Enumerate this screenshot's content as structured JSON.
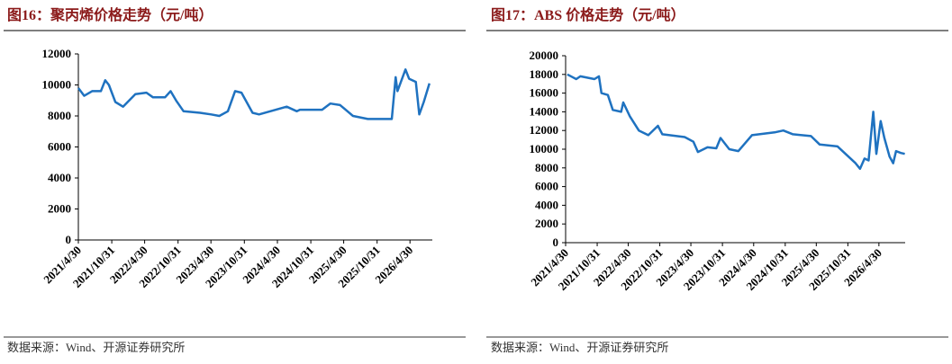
{
  "chart_data": [
    {
      "type": "line",
      "title": "图16：聚丙烯价格走势（元/吨）",
      "color": "#1f72c0",
      "x": [
        "2021/4/30",
        "2021/6/1",
        "2021/7/15",
        "2021/9/1",
        "2021/9/25",
        "2021/10/15",
        "2021/11/20",
        "2022/1/1",
        "2022/3/10",
        "2022/5/10",
        "2022/6/15",
        "2022/8/20",
        "2022/9/20",
        "2022/10/20",
        "2022/11/30",
        "2023/3/1",
        "2023/5/1",
        "2023/6/15",
        "2023/8/1",
        "2023/9/10",
        "2023/10/15",
        "2023/12/15",
        "2024/1/20",
        "2024/6/20",
        "2024/8/15",
        "2024/9/1",
        "2025/1/1",
        "2025/2/15",
        "2025/4/10",
        "2025/6/20",
        "2025/9/10",
        "2025/11/20",
        "2026/1/20",
        "2026/2/10",
        "2026/2/20",
        "2026/4/5",
        "2026/4/25",
        "2026/6/1",
        "2026/6/20",
        "2026/7/15",
        "2026/8/15"
      ],
      "values": [
        9800,
        9300,
        9600,
        9600,
        10300,
        10000,
        8900,
        8600,
        9400,
        9500,
        9200,
        9200,
        9600,
        9000,
        8300,
        8200,
        8100,
        8000,
        8300,
        9600,
        9500,
        8200,
        8100,
        8600,
        8300,
        8400,
        8400,
        8800,
        8700,
        8000,
        7800,
        7800,
        7800,
        10500,
        9600,
        11000,
        10400,
        10200,
        8100,
        8900,
        10100
      ],
      "xlim": [
        "2021/4/30",
        "2026/8/31"
      ],
      "xticks": [
        "2021/4/30",
        "2021/10/31",
        "2022/4/30",
        "2022/10/31",
        "2023/4/30",
        "2023/10/31",
        "2024/4/30",
        "2024/10/31",
        "2025/4/30",
        "2025/10/31",
        "2026/4/30"
      ],
      "ylim": [
        0,
        12000
      ],
      "yticks": [
        0,
        2000,
        4000,
        6000,
        8000,
        10000,
        12000
      ],
      "source": "数据来源：Wind、开源证券研究所"
    },
    {
      "type": "line",
      "title": "图17：ABS 价格走势（元/吨）",
      "color": "#1f72c0",
      "x": [
        "2021/5/10",
        "2021/7/1",
        "2021/7/25",
        "2021/10/15",
        "2021/11/10",
        "2021/11/25",
        "2022/1/1",
        "2022/1/30",
        "2022/3/20",
        "2022/4/1",
        "2022/5/10",
        "2022/7/1",
        "2022/8/25",
        "2022/10/20",
        "2022/11/15",
        "2023/3/25",
        "2023/5/15",
        "2023/6/10",
        "2023/8/5",
        "2023/9/25",
        "2023/10/20",
        "2023/12/10",
        "2024/2/1",
        "2024/4/20",
        "2024/8/30",
        "2024/10/20",
        "2024/12/15",
        "2025/3/30",
        "2025/5/20",
        "2025/9/1",
        "2025/12/15",
        "2026/1/10",
        "2026/2/5",
        "2026/3/1",
        "2026/3/28",
        "2026/4/15",
        "2026/5/10",
        "2026/6/1",
        "2026/7/1",
        "2026/7/22",
        "2026/8/8",
        "2026/9/5",
        "2026/9/28"
      ],
      "values": [
        18000,
        17500,
        17800,
        17500,
        17800,
        16000,
        15800,
        14200,
        14000,
        15000,
        13500,
        12000,
        11500,
        12500,
        11600,
        11300,
        10800,
        9700,
        10200,
        10100,
        11200,
        10000,
        9800,
        11500,
        11800,
        12000,
        11600,
        11400,
        10500,
        10300,
        8500,
        7900,
        9000,
        8800,
        14000,
        9500,
        13000,
        11200,
        9200,
        8500,
        9800,
        9600,
        9500
      ],
      "xlim": [
        "2021/4/30",
        "2026/9/30"
      ],
      "xticks": [
        "2021/4/30",
        "2021/10/31",
        "2022/4/30",
        "2022/10/31",
        "2023/4/30",
        "2023/10/31",
        "2024/4/30",
        "2024/10/31",
        "2025/4/30",
        "2025/10/31",
        "2026/4/30"
      ],
      "ylim": [
        0,
        20000
      ],
      "yticks": [
        0,
        2000,
        4000,
        6000,
        8000,
        10000,
        12000,
        14000,
        16000,
        18000,
        20000
      ],
      "source": "数据来源：Wind、开源证券研究所"
    }
  ]
}
